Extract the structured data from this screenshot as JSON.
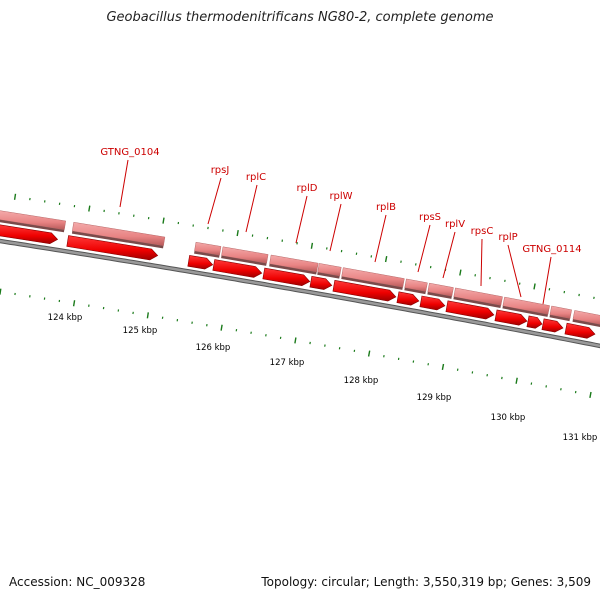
{
  "title": "Geobacillus thermodenitrificans NG80-2, complete genome",
  "footer": {
    "accession": "Accession: NC_009328",
    "info": "Topology: circular; Length: 3,550,319 bp; Genes: 3,509"
  },
  "map": {
    "colors": {
      "backbone": "#7a7a7a",
      "gene_block": "#ea8a8a",
      "gene_arrow": "#ee0000",
      "tick": "#1a7a1a",
      "label": "#cc0000"
    },
    "kbp_labels": [
      "124 kbp",
      "125 kbp",
      "126 kbp",
      "127 kbp",
      "128 kbp",
      "129 kbp",
      "130 kbp",
      "131 kbp"
    ],
    "gene_labels": [
      "GTNG_0104",
      "rpsJ",
      "rplC",
      "rplD",
      "rplW",
      "rplB",
      "rpsS",
      "rplV",
      "rpsC",
      "rplP",
      "GTNG_0114"
    ]
  }
}
